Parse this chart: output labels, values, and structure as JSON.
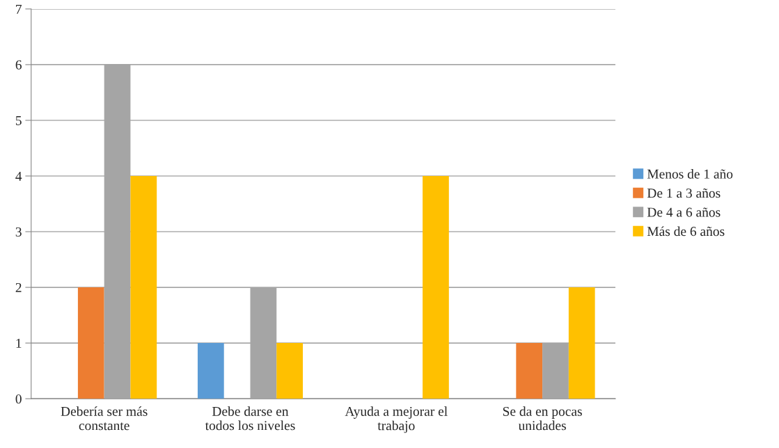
{
  "chart_data": {
    "type": "bar",
    "categories": [
      "Debería ser más constante",
      "Debe darse en todos los niveles",
      "Ayuda a mejorar el trabajo",
      "Se da en pocas unidades"
    ],
    "series": [
      {
        "name": "Menos de 1 año",
        "color": "#5b9bd5",
        "values": [
          0,
          1,
          0,
          0
        ]
      },
      {
        "name": "De 1 a 3 años",
        "color": "#ed7d31",
        "values": [
          2,
          0,
          0,
          1
        ]
      },
      {
        "name": "De 4 a 6 años",
        "color": "#a5a5a5",
        "values": [
          6,
          2,
          0,
          1
        ]
      },
      {
        "name": "Más de 6 años",
        "color": "#ffc000",
        "values": [
          4,
          1,
          4,
          2
        ]
      }
    ],
    "ylim": [
      0,
      7
    ],
    "yticks": [
      0,
      1,
      2,
      3,
      4,
      5,
      6,
      7
    ],
    "grid": "y",
    "legend": "right"
  }
}
